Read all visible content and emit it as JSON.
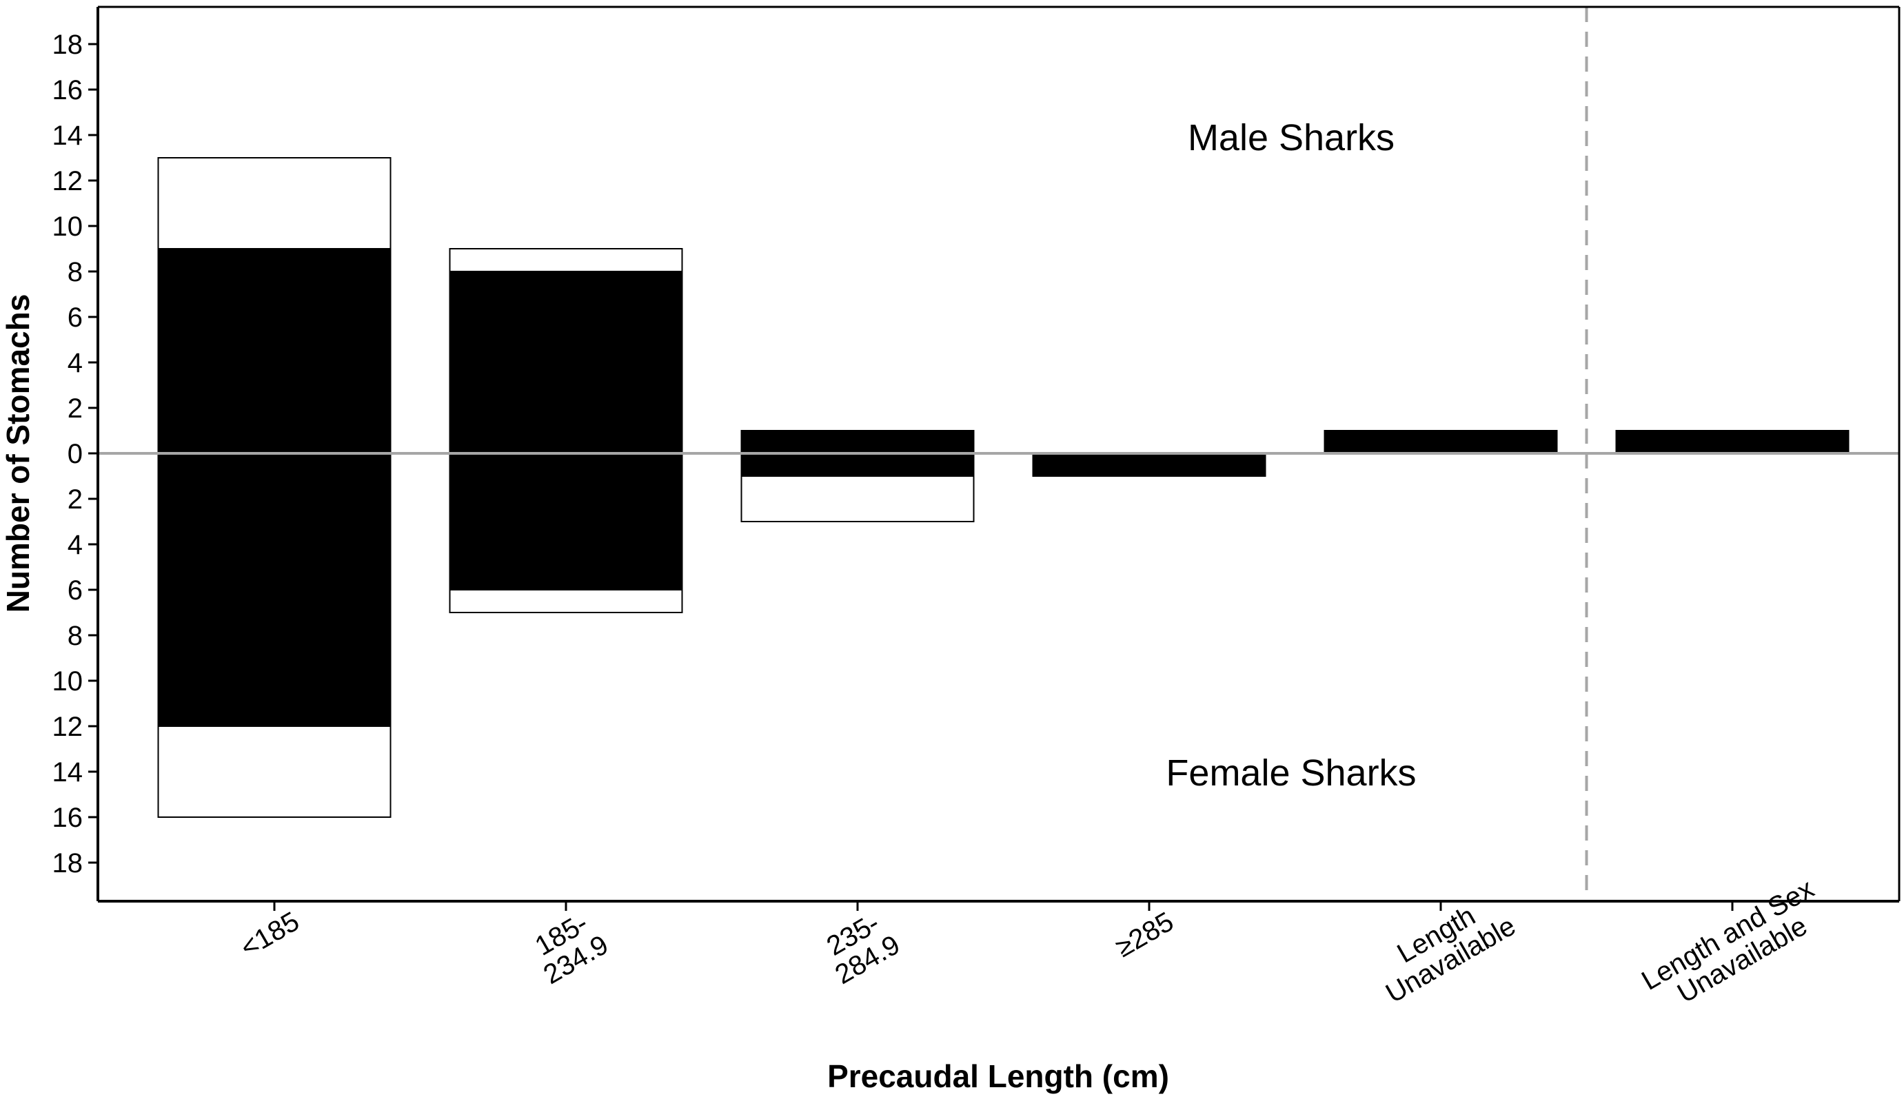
{
  "chart_data": {
    "type": "bar",
    "xlabel": "Precaudal Length (cm)",
    "ylabel": "Number of Stomachs",
    "ylim": [
      -20,
      20
    ],
    "yticks": [
      {
        "value": 18,
        "label": "18"
      },
      {
        "value": 16,
        "label": "16"
      },
      {
        "value": 14,
        "label": "14"
      },
      {
        "value": 12,
        "label": "12"
      },
      {
        "value": 10,
        "label": "10"
      },
      {
        "value": 8,
        "label": "8"
      },
      {
        "value": 6,
        "label": "6"
      },
      {
        "value": 4,
        "label": "4"
      },
      {
        "value": 2,
        "label": "2"
      },
      {
        "value": 0,
        "label": "0"
      },
      {
        "value": -2,
        "label": "2"
      },
      {
        "value": -4,
        "label": "4"
      },
      {
        "value": -6,
        "label": "6"
      },
      {
        "value": -8,
        "label": "8"
      },
      {
        "value": -10,
        "label": "10"
      },
      {
        "value": -12,
        "label": "12"
      },
      {
        "value": -14,
        "label": "14"
      },
      {
        "value": -16,
        "label": "16"
      },
      {
        "value": -18,
        "label": "18"
      }
    ],
    "categories": [
      {
        "lines": [
          "<185"
        ]
      },
      {
        "lines": [
          "185-",
          "234.9"
        ]
      },
      {
        "lines": [
          "235-",
          "284.9"
        ]
      },
      {
        "lines": [
          "≥285"
        ]
      },
      {
        "lines": [
          "Length",
          "Unavailable"
        ]
      },
      {
        "lines": [
          "Length and Sex",
          "Unavailable"
        ]
      }
    ],
    "series": [
      {
        "group": "male",
        "fill": "#000000",
        "values": [
          9,
          8,
          1,
          0,
          1,
          1
        ]
      },
      {
        "group": "male",
        "fill": "#ffffff",
        "values": [
          4,
          1,
          0,
          0,
          0,
          0
        ]
      },
      {
        "group": "female",
        "fill": "#000000",
        "values": [
          12,
          6,
          1,
          1,
          0,
          0
        ]
      },
      {
        "group": "female",
        "fill": "#ffffff",
        "values": [
          4,
          1,
          2,
          0,
          0,
          0
        ]
      }
    ],
    "annotations": {
      "upper": "Male Sharks",
      "lower": "Female Sharks"
    },
    "zero_line_color": "#a6a6a6",
    "separator_line": {
      "after_category_index": 4,
      "style": "dashed",
      "color": "#a6a6a6"
    },
    "grid": false
  }
}
